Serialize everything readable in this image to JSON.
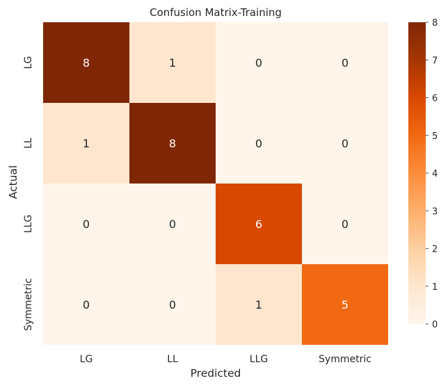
{
  "chart_data": {
    "type": "heatmap",
    "title": "Confusion Matrix-Training",
    "xlabel": "Predicted",
    "ylabel": "Actual",
    "x_categories": [
      "LG",
      "LL",
      "LLG",
      "Symmetric"
    ],
    "y_categories": [
      "LG",
      "LL",
      "LLG",
      "Symmetric"
    ],
    "values": [
      [
        8,
        1,
        0,
        0
      ],
      [
        1,
        8,
        0,
        0
      ],
      [
        0,
        0,
        6,
        0
      ],
      [
        0,
        0,
        1,
        5
      ]
    ],
    "colorbar": {
      "min": 0,
      "max": 8,
      "ticks": [
        "0",
        "1",
        "2",
        "3",
        "4",
        "5",
        "6",
        "7",
        "8"
      ]
    },
    "colormap": "Oranges",
    "colors": {
      "low": "#fff5eb",
      "high": "#7f2704"
    }
  }
}
